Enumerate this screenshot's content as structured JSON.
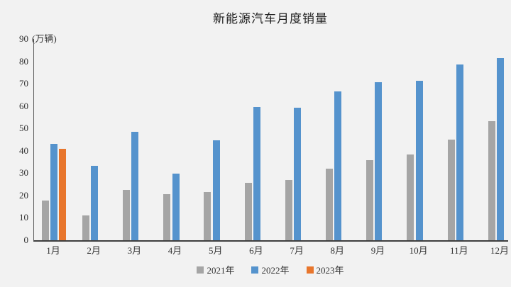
{
  "title": "新能源汽车月度销量",
  "y_axis_unit_label": "(万辆)",
  "colors": {
    "background": "#f2f2f2",
    "axis": "#4d4d4d",
    "text": "#333333",
    "series_2021": "#a5a5a5",
    "series_2022": "#5593cd",
    "series_2023": "#e8762d"
  },
  "chart_data": {
    "type": "bar",
    "title": "新能源汽车月度销量",
    "ylabel": "(万辆)",
    "xlabel": "",
    "categories": [
      "1月",
      "2月",
      "3月",
      "4月",
      "5月",
      "6月",
      "7月",
      "8月",
      "9月",
      "10月",
      "11月",
      "12月"
    ],
    "series": [
      {
        "name": "2021年",
        "color": "#a5a5a5",
        "values": [
          17.9,
          11.0,
          22.6,
          20.6,
          21.7,
          25.6,
          27.1,
          32.1,
          35.7,
          38.3,
          45.0,
          53.1
        ]
      },
      {
        "name": "2022年",
        "color": "#5593cd",
        "values": [
          43.1,
          33.4,
          48.4,
          29.9,
          44.7,
          59.6,
          59.3,
          66.6,
          70.8,
          71.4,
          78.6,
          81.4
        ]
      },
      {
        "name": "2023年",
        "color": "#e8762d",
        "values": [
          40.8,
          null,
          null,
          null,
          null,
          null,
          null,
          null,
          null,
          null,
          null,
          null
        ]
      }
    ],
    "ylim": [
      0,
      90
    ],
    "yticks": [
      0,
      10,
      20,
      30,
      40,
      50,
      60,
      70,
      80,
      90
    ],
    "grid": false,
    "legend_position": "bottom"
  }
}
